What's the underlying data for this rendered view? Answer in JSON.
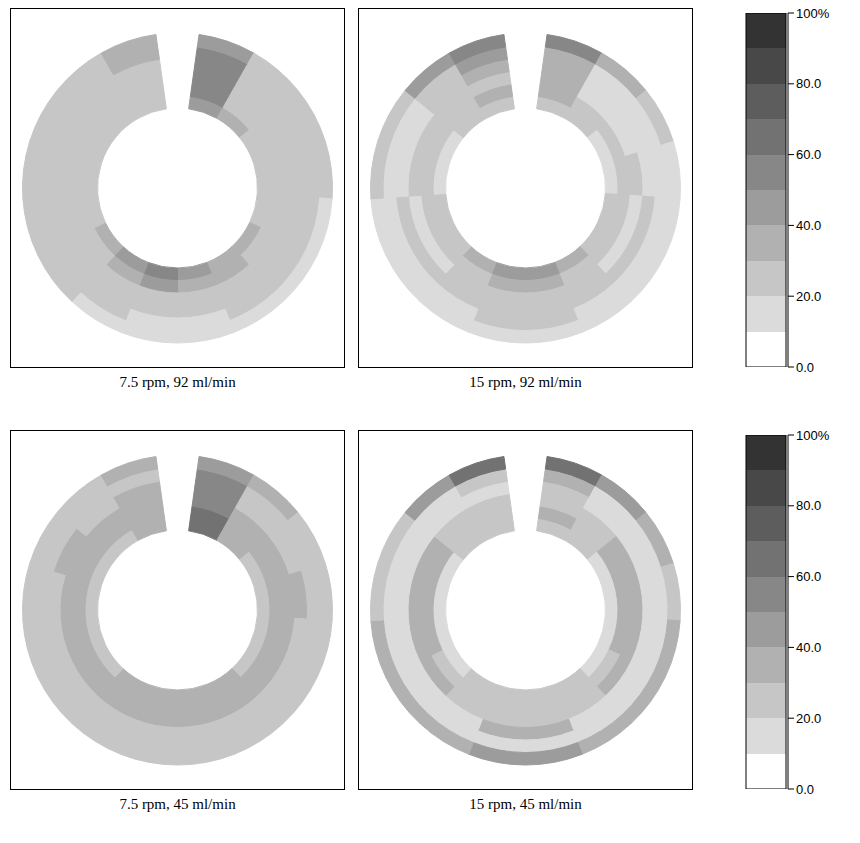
{
  "chart_data": [
    {
      "type": "heatmap",
      "title": "7.5 rpm, 92 ml/min",
      "cells": [
        [
          45,
          30,
          25,
          22,
          25,
          30,
          38,
          48,
          50,
          40,
          30,
          25,
          22,
          22,
          25,
          28
        ],
        [
          50,
          25,
          22,
          20,
          22,
          25,
          30,
          38,
          40,
          32,
          25,
          22,
          20,
          20,
          22,
          25
        ],
        [
          50,
          22,
          28,
          25,
          22,
          22,
          25,
          28,
          28,
          25,
          22,
          25,
          28,
          25,
          22,
          25
        ],
        [
          55,
          25,
          20,
          22,
          25,
          20,
          22,
          22,
          22,
          20,
          22,
          22,
          20,
          22,
          25,
          28
        ],
        [
          55,
          22,
          25,
          20,
          20,
          22,
          20,
          18,
          18,
          20,
          20,
          25,
          22,
          20,
          22,
          30
        ],
        [
          45,
          28,
          22,
          20,
          18,
          15,
          12,
          10,
          12,
          15,
          20,
          22,
          25,
          22,
          25,
          30
        ]
      ]
    },
    {
      "type": "heatmap",
      "title": "15 rpm, 92 ml/min",
      "cells": [
        [
          25,
          20,
          18,
          18,
          20,
          25,
          32,
          45,
          45,
          35,
          25,
          20,
          18,
          18,
          20,
          22
        ],
        [
          30,
          22,
          25,
          22,
          20,
          22,
          25,
          30,
          30,
          28,
          22,
          20,
          22,
          25,
          28,
          30
        ],
        [
          30,
          18,
          18,
          20,
          18,
          18,
          20,
          22,
          22,
          20,
          18,
          18,
          20,
          20,
          22,
          25
        ],
        [
          32,
          15,
          15,
          18,
          22,
          25,
          25,
          25,
          25,
          25,
          22,
          20,
          18,
          18,
          22,
          30
        ],
        [
          35,
          18,
          15,
          15,
          15,
          15,
          18,
          20,
          20,
          18,
          15,
          15,
          15,
          18,
          25,
          40
        ],
        [
          50,
          30,
          20,
          18,
          15,
          15,
          15,
          15,
          15,
          15,
          15,
          18,
          20,
          25,
          40,
          55
        ]
      ],
      "color_range": [
        0,
        100
      ],
      "color_ticks": [
        {
          "value": 0,
          "label": "0.0"
        },
        {
          "value": 20,
          "label": "20.0"
        },
        {
          "value": 40,
          "label": "40.0"
        },
        {
          "value": 60,
          "label": "60.0"
        },
        {
          "value": 80,
          "label": "80.0"
        },
        {
          "value": 100,
          "label": "100%"
        }
      ]
    },
    {
      "type": "heatmap",
      "title": "7.5 rpm, 45 ml/min",
      "cells": [
        [
          60,
          30,
          28,
          25,
          25,
          28,
          30,
          32,
          32,
          30,
          28,
          25,
          25,
          25,
          28,
          30
        ],
        [
          60,
          35,
          32,
          30,
          30,
          32,
          35,
          35,
          35,
          35,
          32,
          32,
          30,
          30,
          32,
          35
        ],
        [
          55,
          32,
          35,
          35,
          35,
          35,
          32,
          30,
          30,
          32,
          35,
          35,
          35,
          32,
          30,
          32
        ],
        [
          55,
          28,
          28,
          30,
          28,
          25,
          25,
          28,
          28,
          25,
          25,
          28,
          28,
          30,
          28,
          30
        ],
        [
          55,
          25,
          22,
          20,
          20,
          22,
          25,
          25,
          25,
          25,
          22,
          20,
          20,
          22,
          25,
          28
        ],
        [
          45,
          30,
          25,
          22,
          20,
          22,
          25,
          28,
          28,
          25,
          22,
          20,
          22,
          25,
          28,
          35
        ]
      ]
    },
    {
      "type": "heatmap",
      "title": "15 rpm, 45 ml/min",
      "cells": [
        [
          25,
          20,
          18,
          18,
          18,
          18,
          20,
          22,
          22,
          20,
          18,
          18,
          18,
          18,
          20,
          22
        ],
        [
          30,
          28,
          30,
          32,
          30,
          28,
          25,
          25,
          25,
          25,
          28,
          30,
          32,
          30,
          28,
          28
        ],
        [
          28,
          25,
          30,
          32,
          32,
          30,
          28,
          28,
          28,
          28,
          30,
          32,
          32,
          30,
          25,
          25
        ],
        [
          25,
          15,
          15,
          12,
          12,
          15,
          18,
          30,
          30,
          18,
          15,
          12,
          12,
          15,
          15,
          18
        ],
        [
          30,
          15,
          12,
          12,
          12,
          12,
          15,
          18,
          18,
          15,
          12,
          12,
          12,
          12,
          15,
          25
        ],
        [
          60,
          40,
          30,
          28,
          30,
          32,
          38,
          45,
          45,
          38,
          32,
          30,
          28,
          28,
          40,
          60
        ]
      ],
      "color_range": [
        0,
        100
      ],
      "color_ticks": [
        {
          "value": 0,
          "label": "0.0"
        },
        {
          "value": 20,
          "label": "20.0"
        },
        {
          "value": 40,
          "label": "40.0"
        },
        {
          "value": 60,
          "label": "60.0"
        },
        {
          "value": 80,
          "label": "80.0"
        },
        {
          "value": 100,
          "label": "100%"
        }
      ]
    }
  ]
}
